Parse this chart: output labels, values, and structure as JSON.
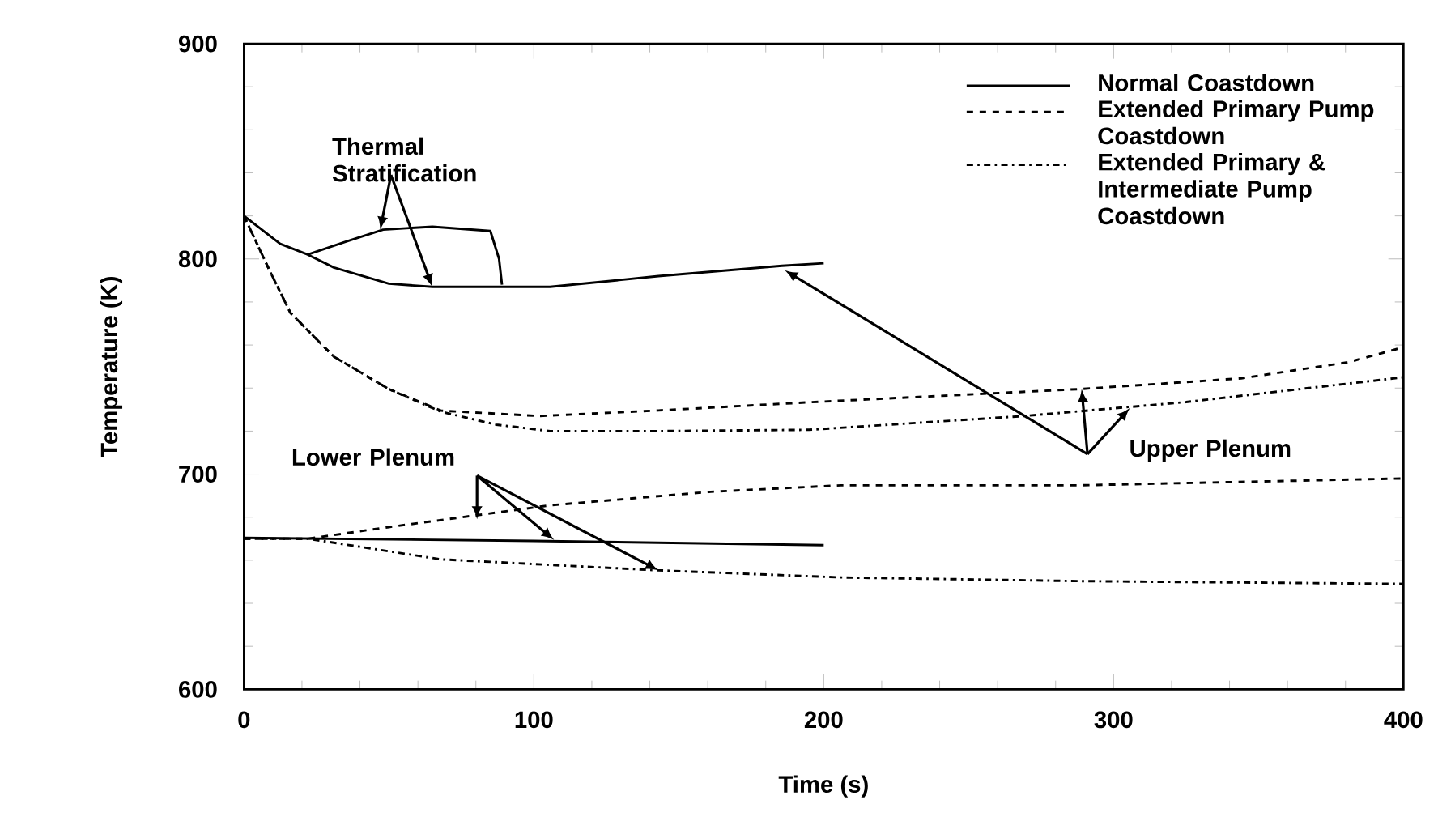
{
  "chart_data": {
    "type": "line",
    "xlabel": "Time (s)",
    "ylabel": "Temperature (K)",
    "xlim": [
      0,
      400
    ],
    "ylim": [
      600,
      900
    ],
    "xticks": [
      0,
      100,
      200,
      300,
      400
    ],
    "yticks": [
      600,
      700,
      800,
      900
    ],
    "grid": false,
    "legend": "top right",
    "marker": "none",
    "annotations": [
      {
        "text": "Thermal Stratification",
        "x": 65,
        "y": 787
      },
      {
        "text": "Lower Plenum",
        "x": 107,
        "y": 669.4
      },
      {
        "text": "Upper Plenum",
        "x": 305.6,
        "y": 730.7
      }
    ],
    "series": [
      {
        "name": "Normal Coastdown",
        "color": "#000000",
        "line_style": "solid",
        "x": [
          0,
          12.5,
          22,
          31,
          50,
          65,
          89,
          105.6,
          143,
          185.6,
          200
        ],
        "values": [
          820,
          807,
          802,
          796,
          788.5,
          787,
          787,
          787,
          792,
          796.8,
          798
        ]
      },
      {
        "color": "#000000",
        "line_style": "solid",
        "x": [
          22,
          35,
          48,
          65,
          85,
          88,
          89
        ],
        "values": [
          802,
          808,
          813.6,
          815,
          813,
          800,
          788
        ]
      },
      {
        "name": "Extended Primary Pump Coastdown",
        "color": "#000000",
        "line_style": "dashed",
        "x": [
          0,
          8.8,
          16,
          31,
          50,
          68,
          102,
          143,
          195,
          288,
          344,
          381,
          400
        ],
        "values": [
          820,
          794.7,
          775,
          754.6,
          739.5,
          729.5,
          727,
          729.6,
          733.4,
          739.5,
          744.5,
          752,
          759
        ]
      },
      {
        "name": "Extended Primary & Intermediate Pump Coastdown",
        "color": "#000000",
        "line_style": "dashdot",
        "x": [
          0,
          8.8,
          16,
          31,
          50,
          68,
          87,
          105.6,
          143,
          195,
          269,
          325,
          400
        ],
        "values": [
          820,
          794.7,
          775,
          754.6,
          739.5,
          729,
          723,
          720,
          720,
          720.6,
          727,
          733.5,
          745
        ]
      },
      {
        "color": "#000000",
        "line_style": "solid",
        "x": [
          0,
          100,
          200
        ],
        "values": [
          670.4,
          669,
          667
        ]
      },
      {
        "color": "#000000",
        "line_style": "dashed",
        "x": [
          0,
          22,
          50,
          105.6,
          161,
          206,
          288,
          400
        ],
        "values": [
          670,
          670,
          675.4,
          685.5,
          691.8,
          694.8,
          694.8,
          698
        ]
      },
      {
        "color": "#000000",
        "line_style": "dashdot",
        "x": [
          0,
          22,
          68,
          143,
          206,
          288,
          400
        ],
        "values": [
          670,
          670,
          660.4,
          655.3,
          652,
          650.3,
          649
        ]
      }
    ]
  }
}
